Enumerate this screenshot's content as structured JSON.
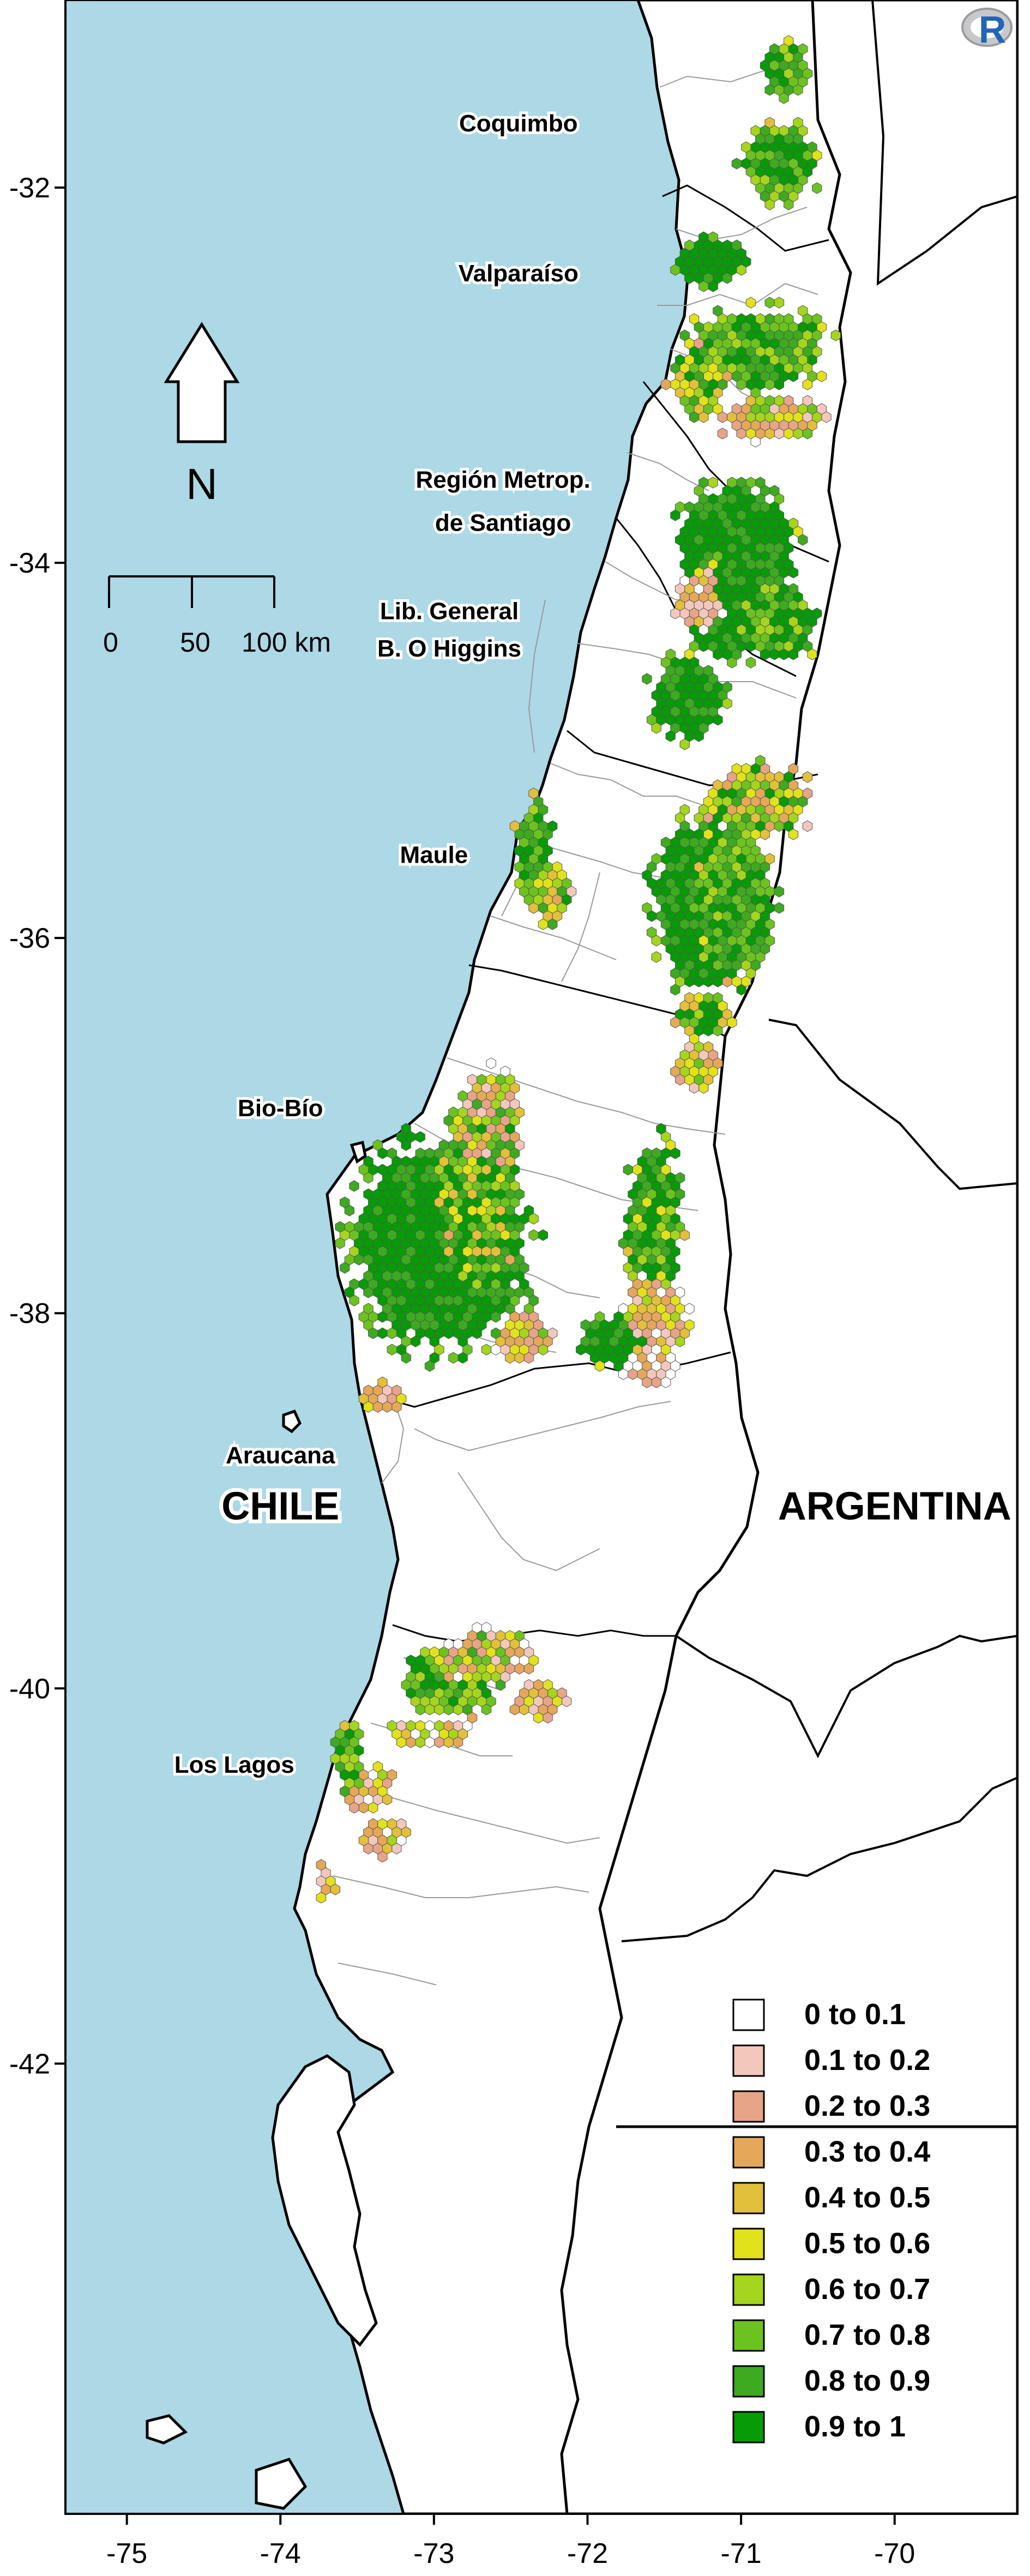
{
  "map": {
    "y_axis": {
      "ticks": [
        {
          "label": "-32",
          "value": -32
        },
        {
          "label": "-34",
          "value": -34
        },
        {
          "label": "-36",
          "value": -36
        },
        {
          "label": "-38",
          "value": -38
        },
        {
          "label": "-40",
          "value": -40
        },
        {
          "label": "-42",
          "value": -42
        }
      ]
    },
    "x_axis": {
      "ticks": [
        {
          "label": "-75",
          "value": -75
        },
        {
          "label": "-74",
          "value": -74
        },
        {
          "label": "-73",
          "value": -73
        },
        {
          "label": "-72",
          "value": -72
        },
        {
          "label": "-71",
          "value": -71
        },
        {
          "label": "-70",
          "value": -70
        }
      ]
    },
    "extent": {
      "lon": [
        -75.4,
        -69.2
      ],
      "lat": [
        -44.4,
        -31.0
      ]
    },
    "regions": [
      {
        "name": "Coquimbo",
        "lon": -72.45,
        "lat": -31.7
      },
      {
        "name": "Valparaíso",
        "lon": -72.45,
        "lat": -32.5
      },
      {
        "name": "Región Metrop.",
        "lon": -72.55,
        "lat": -33.6
      },
      {
        "name": "de Santiago",
        "lon": -72.55,
        "lat": -33.83
      },
      {
        "name": "Lib. General",
        "lon": -72.9,
        "lat": -34.3
      },
      {
        "name": "B. O Higgins",
        "lon": -72.9,
        "lat": -34.5
      },
      {
        "name": "Maule",
        "lon": -73.0,
        "lat": -35.6
      },
      {
        "name": "Bio-Bío",
        "lon": -74.0,
        "lat": -36.95
      },
      {
        "name": "Araucana",
        "lon": -74.0,
        "lat": -38.8
      },
      {
        "name": "Los Lagos",
        "lon": -74.3,
        "lat": -40.45
      }
    ],
    "countries": [
      {
        "name": "CHILE",
        "lon": -74.0,
        "lat": -39.1
      },
      {
        "name": "ARGENTINA",
        "lon": -70.0,
        "lat": -39.1
      }
    ],
    "north_arrow": {
      "label": "N"
    },
    "scale_bar": {
      "labels": [
        "0",
        "50",
        "100 km"
      ]
    },
    "logo": {
      "text": "R"
    },
    "colors": {
      "sea": "#add8e6",
      "land": "#ffffff",
      "border": "#000000",
      "admin_border": "#999999"
    }
  },
  "legend": {
    "items": [
      {
        "label": "0 to 0.1",
        "color": "#ffffff"
      },
      {
        "label": "0.1 to 0.2",
        "color": "#f4c7bd"
      },
      {
        "label": "0.2 to 0.3",
        "color": "#e8a487"
      },
      {
        "label": "0.3 to 0.4",
        "color": "#e5a85a"
      },
      {
        "label": "0.4 to 0.5",
        "color": "#e3c03b"
      },
      {
        "label": "0.5 to 0.6",
        "color": "#e2e21c"
      },
      {
        "label": "0.6 to 0.7",
        "color": "#a5d51d"
      },
      {
        "label": "0.7 to 0.8",
        "color": "#6cc31f"
      },
      {
        "label": "0.8 to 0.9",
        "color": "#3daa20"
      },
      {
        "label": "0.9 to 1",
        "color": "#079b07"
      }
    ]
  }
}
